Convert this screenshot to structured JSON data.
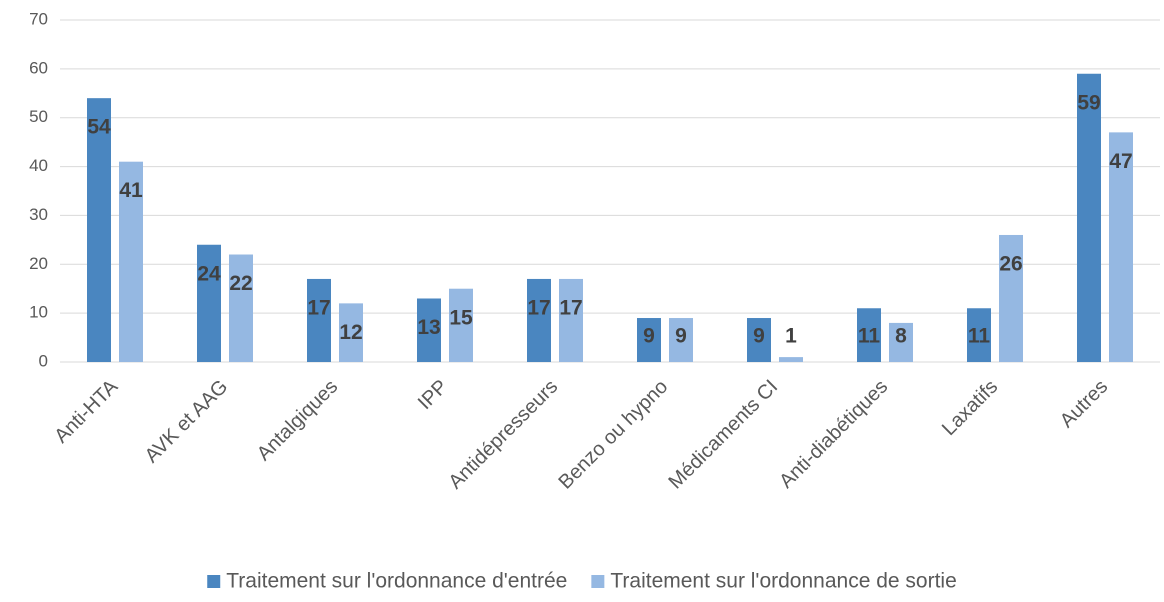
{
  "chart_data": {
    "type": "bar",
    "categories": [
      "Anti-HTA",
      "AVK et AAG",
      "Antalgiques",
      "IPP",
      "Antidépresseurs",
      "Benzo ou hypno",
      "Médicaments CI",
      "Anti-diabétiques",
      "Laxatifs",
      "Autres"
    ],
    "series": [
      {
        "name": "Traitement sur l'ordonnance d'entrée",
        "color": "#4a86c0",
        "values": [
          54,
          24,
          17,
          13,
          17,
          9,
          9,
          11,
          11,
          59
        ]
      },
      {
        "name": "Traitement sur l'ordonnance de sortie",
        "color": "#95b8e2",
        "values": [
          41,
          22,
          12,
          15,
          17,
          9,
          1,
          8,
          26,
          47
        ]
      }
    ],
    "ylim": [
      0,
      70
    ],
    "yticks": [
      0,
      10,
      20,
      30,
      40,
      50,
      60,
      70
    ],
    "grid": true,
    "legend": "bottom"
  }
}
